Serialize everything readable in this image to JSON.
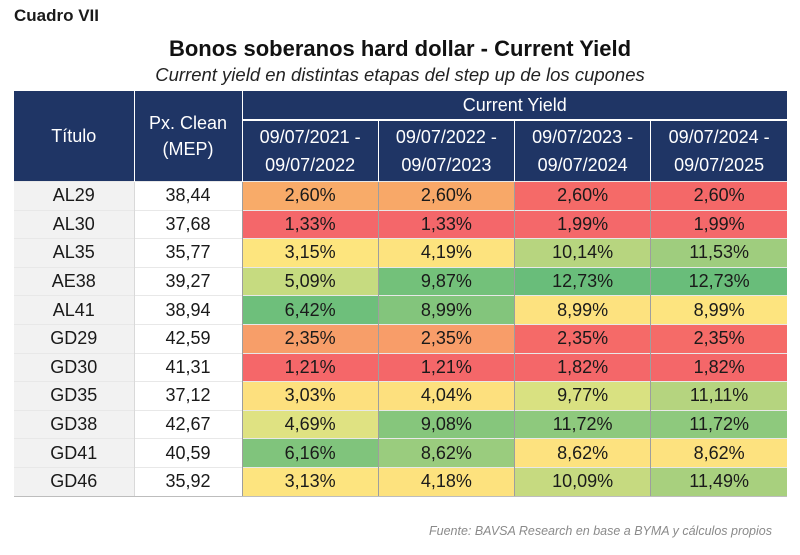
{
  "cuadro": "Cuadro VII",
  "title": "Bonos soberanos hard dollar - Current Yield",
  "subtitle": "Current yield en distintas etapas del step up de los cupones",
  "table": {
    "header_titulo": "Título",
    "header_px_line1": "Px. Clean",
    "header_px_line2": "(MEP)",
    "header_group": "Current Yield",
    "periods": [
      {
        "from": "09/07/2021 -",
        "to": "09/07/2022"
      },
      {
        "from": "09/07/2022 -",
        "to": "09/07/2023"
      },
      {
        "from": "09/07/2023 -",
        "to": "09/07/2024"
      },
      {
        "from": "09/07/2024 -",
        "to": "09/07/2025"
      }
    ],
    "rows": [
      {
        "titulo": "AL29",
        "px": "38,44",
        "y": [
          "2,60%",
          "2,60%",
          "2,60%",
          "2,60%"
        ],
        "colors": [
          "#f8ab69",
          "#f8a868",
          "#f56a68",
          "#f46868"
        ]
      },
      {
        "titulo": "AL30",
        "px": "37,68",
        "y": [
          "1,33%",
          "1,33%",
          "1,99%",
          "1,99%"
        ],
        "colors": [
          "#f4676a",
          "#f4676a",
          "#f4686a",
          "#f4686a"
        ]
      },
      {
        "titulo": "AL35",
        "px": "35,77",
        "y": [
          "3,15%",
          "4,19%",
          "10,14%",
          "11,53%"
        ],
        "colors": [
          "#fde57e",
          "#fde37e",
          "#b7d57f",
          "#9fcd7e"
        ]
      },
      {
        "titulo": "AE38",
        "px": "39,27",
        "y": [
          "5,09%",
          "9,87%",
          "12,73%",
          "12,73%"
        ],
        "colors": [
          "#c6db80",
          "#73c17a",
          "#69bd7a",
          "#69bd7a"
        ]
      },
      {
        "titulo": "AL41",
        "px": "38,94",
        "y": [
          "6,42%",
          "8,99%",
          "8,99%",
          "8,99%"
        ],
        "colors": [
          "#6ebf7b",
          "#83c57c",
          "#fde27f",
          "#fde47f"
        ]
      },
      {
        "titulo": "GD29",
        "px": "42,59",
        "y": [
          "2,35%",
          "2,35%",
          "2,35%",
          "2,35%"
        ],
        "colors": [
          "#f79e69",
          "#f89d69",
          "#f56a68",
          "#f56b68"
        ]
      },
      {
        "titulo": "GD30",
        "px": "41,31",
        "y": [
          "1,21%",
          "1,21%",
          "1,82%",
          "1,82%"
        ],
        "colors": [
          "#f56769",
          "#f46769",
          "#f46769",
          "#f46769"
        ]
      },
      {
        "titulo": "GD35",
        "px": "37,12",
        "y": [
          "3,03%",
          "4,04%",
          "9,77%",
          "11,11%"
        ],
        "colors": [
          "#fde07e",
          "#fde07e",
          "#d9e181",
          "#b5d47f"
        ]
      },
      {
        "titulo": "GD38",
        "px": "42,67",
        "y": [
          "4,69%",
          "9,08%",
          "11,72%",
          "11,72%"
        ],
        "colors": [
          "#dfe282",
          "#86c67c",
          "#8ec97d",
          "#8ec97d"
        ]
      },
      {
        "titulo": "GD41",
        "px": "40,59",
        "y": [
          "6,16%",
          "8,62%",
          "8,62%",
          "8,62%"
        ],
        "colors": [
          "#80c47c",
          "#9acc7e",
          "#fde27f",
          "#fde27f"
        ]
      },
      {
        "titulo": "GD46",
        "px": "35,92",
        "y": [
          "3,13%",
          "4,18%",
          "10,09%",
          "11,49%"
        ],
        "colors": [
          "#fde47f",
          "#fde27e",
          "#c6da80",
          "#a8d07e"
        ]
      }
    ]
  },
  "source": "Fuente: BAVSA Research en base a BYMA y cálculos propios"
}
